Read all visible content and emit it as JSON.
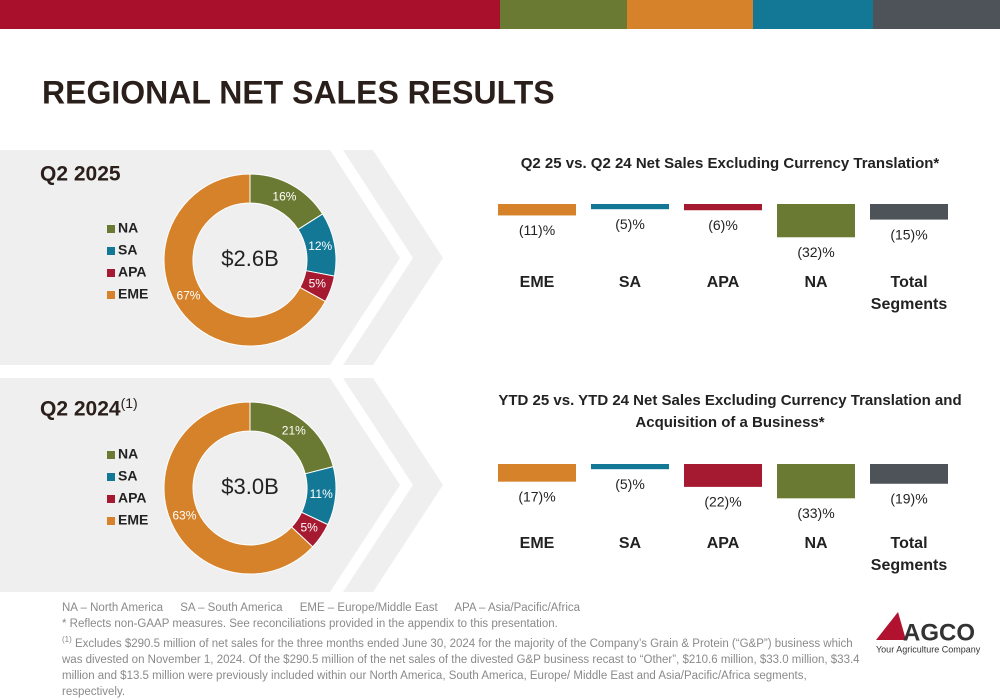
{
  "title": "REGIONAL NET SALES RESULTS",
  "chart_data": [
    {
      "type": "donut",
      "title": "Q2 2025",
      "center_label": "$2.6B",
      "categories": [
        "NA",
        "SA",
        "APA",
        "EME"
      ],
      "values": [
        16,
        12,
        5,
        67
      ],
      "value_labels": [
        "16%",
        "12%",
        "5%",
        "67%"
      ],
      "colors": [
        "#6b7a32",
        "#137896",
        "#a51a30",
        "#d5822a"
      ]
    },
    {
      "type": "donut",
      "title": "Q2 2024",
      "title_note": "(1)",
      "center_label": "$3.0B",
      "categories": [
        "NA",
        "SA",
        "APA",
        "EME"
      ],
      "values": [
        21,
        11,
        5,
        63
      ],
      "value_labels": [
        "21%",
        "11%",
        "5%",
        "63%"
      ],
      "colors": [
        "#6b7a32",
        "#137896",
        "#a51a30",
        "#d5822a"
      ]
    },
    {
      "type": "bar",
      "title": "Q2 25 vs. Q2 24 Net Sales Excluding Currency Translation*",
      "categories": [
        "EME",
        "SA",
        "APA",
        "NA",
        "Total Segments"
      ],
      "values": [
        -11,
        -5,
        -6,
        -32,
        -15
      ],
      "value_labels": [
        "(11)%",
        "(5)%",
        "(6)%",
        "(32)%",
        "(15)%"
      ],
      "colors": [
        "#d5822a",
        "#137896",
        "#a51a30",
        "#6b7a32",
        "#4d5358"
      ]
    },
    {
      "type": "bar",
      "title": "YTD 25 vs. YTD 24 Net Sales Excluding Currency Translation and Acquisition of a Business*",
      "categories": [
        "EME",
        "SA",
        "APA",
        "NA",
        "Total Segments"
      ],
      "values": [
        -17,
        -5,
        -22,
        -33,
        -19
      ],
      "value_labels": [
        "(17)%",
        "(5)%",
        "(22)%",
        "(33)%",
        "(19)%"
      ],
      "colors": [
        "#d5822a",
        "#137896",
        "#a51a30",
        "#6b7a32",
        "#4d5358"
      ]
    }
  ],
  "footnotes": {
    "abbreviations": [
      "NA – North America",
      "SA – South America",
      "EME – Europe/Middle East",
      "APA – Asia/Pacific/Africa"
    ],
    "non_gaap": "* Reflects non-GAAP measures. See reconciliations provided in the appendix to this presentation.",
    "note_marker": "(1)",
    "note": "Excludes $290.5 million of net sales for the three months ended June 30, 2024 for the majority of the Company’s Grain & Protein (“G&P”) business which was divested on November 1, 2024. Of the $290.5 million of the net sales of the divested G&P business recast to “Other”, $210.6 million, $33.0 million, $33.4 million and $13.5 million were previously included within our North America, South America, Europe/ Middle East and Asia/Pacific/Africa segments, respectively."
  },
  "logo": {
    "name": "AGCO",
    "tagline": "Your Agriculture Company"
  }
}
